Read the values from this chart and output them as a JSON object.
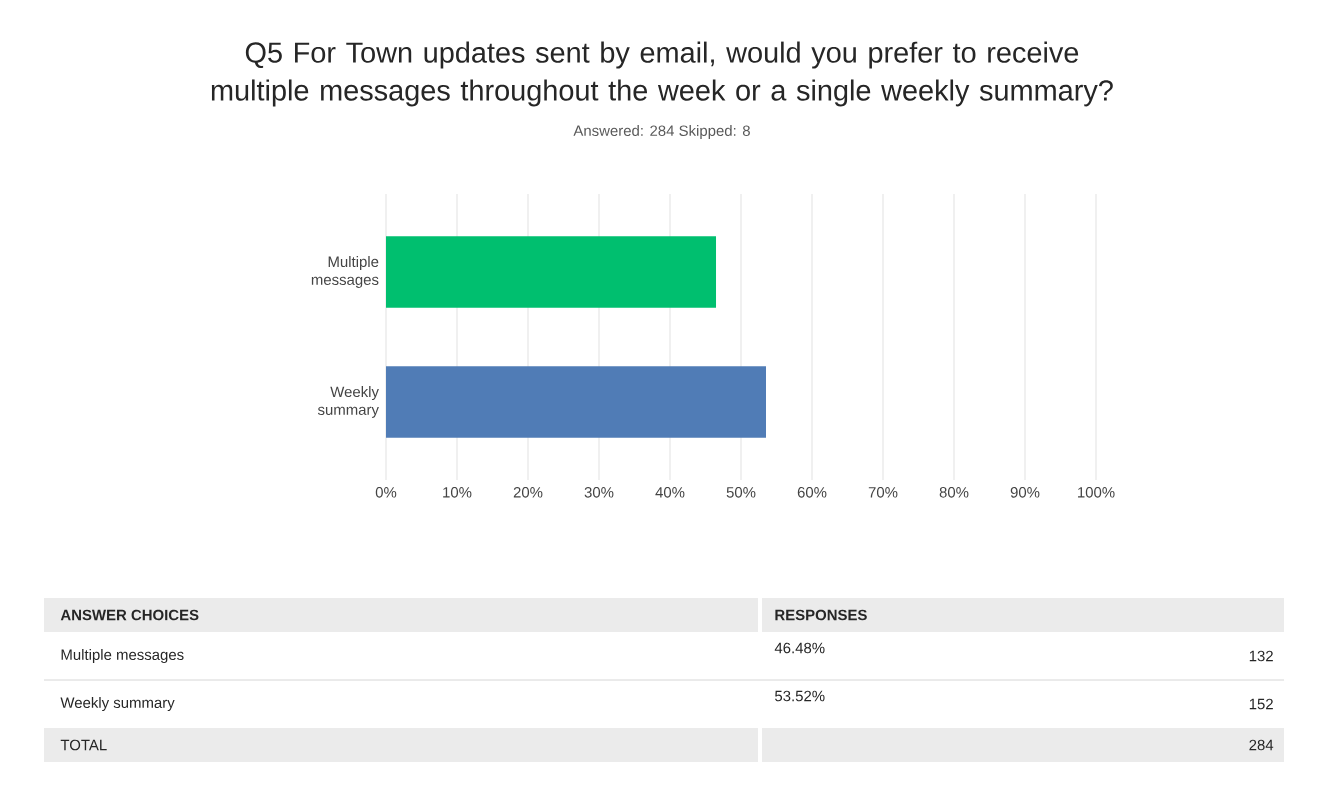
{
  "chart_data": {
    "type": "bar",
    "orientation": "horizontal",
    "title": "Q5 For Town updates sent by email, would you prefer to receive multiple messages throughout the week or a single weekly summary?",
    "subtitle": "Answered: 284   Skipped: 8",
    "categories": [
      "Multiple messages",
      "Weekly summary"
    ],
    "values": [
      46.48,
      53.52
    ],
    "colors": [
      "#00bf6f",
      "#507cb6"
    ],
    "xlim": [
      0,
      100
    ],
    "xticks": [
      {
        "value": 0,
        "label": "0%"
      },
      {
        "value": 10,
        "label": "10%"
      },
      {
        "value": 20,
        "label": "20%"
      },
      {
        "value": 30,
        "label": "30%"
      },
      {
        "value": 40,
        "label": "40%"
      },
      {
        "value": 50,
        "label": "50%"
      },
      {
        "value": 60,
        "label": "60%"
      },
      {
        "value": 70,
        "label": "70%"
      },
      {
        "value": 80,
        "label": "80%"
      },
      {
        "value": 90,
        "label": "90%"
      },
      {
        "value": 100,
        "label": "100%"
      }
    ],
    "grid": "x",
    "annotations": [
      "ANSWER CHOICES",
      "RESPONSES",
      "46.48%",
      "132",
      "53.52%",
      "152",
      "TOTAL",
      "284"
    ]
  }
}
